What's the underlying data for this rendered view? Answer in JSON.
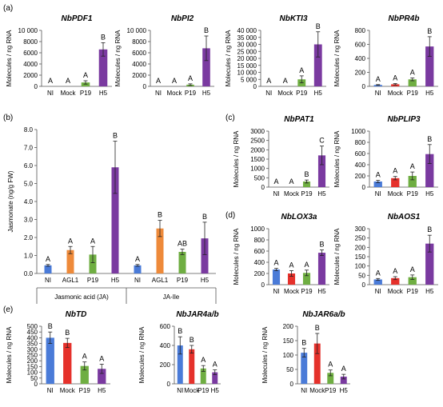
{
  "figure": {
    "panel_labels": [
      "(a)",
      "(b)",
      "(c)",
      "(d)",
      "(e)"
    ]
  },
  "colors": {
    "NI": "#4a7bd8",
    "Mock": "#e5312b",
    "P19": "#6fae42",
    "H5": "#7a3aa0",
    "AGL1": "#ee8a3a"
  },
  "chart_data": [
    {
      "type": "bar",
      "title": "NbPDF1",
      "ylabel": "Molecules / ng RNA",
      "categories": [
        "NI",
        "Mock",
        "P19",
        "H5"
      ],
      "values": [
        0,
        0,
        700,
        6600
      ],
      "errors": [
        0,
        0,
        300,
        1200
      ],
      "letters": [
        "A",
        "A",
        "A",
        "B"
      ],
      "ylim": [
        0,
        10000
      ],
      "yticks": [
        "0",
        "2000",
        "4000",
        "6000",
        "8000",
        "10 000"
      ]
    },
    {
      "type": "bar",
      "title": "NbPI2",
      "ylabel": "Molecules / ng RNA",
      "categories": [
        "NI",
        "Mock",
        "P19",
        "H5"
      ],
      "values": [
        0,
        0,
        300,
        6800
      ],
      "errors": [
        0,
        0,
        150,
        2200
      ],
      "letters": [
        "A",
        "A",
        "A",
        "B"
      ],
      "ylim": [
        0,
        10000
      ],
      "yticks": [
        "0",
        "2000",
        "4000",
        "6000",
        "8000",
        "10 000"
      ]
    },
    {
      "type": "bar",
      "title": "NbKTI3",
      "ylabel": "Molecules / ng RNA",
      "categories": [
        "NI",
        "Mock",
        "P19",
        "H5"
      ],
      "values": [
        0,
        0,
        5000,
        30000
      ],
      "errors": [
        0,
        0,
        2500,
        9000
      ],
      "letters": [
        "A",
        "A",
        "A",
        "B"
      ],
      "ylim": [
        0,
        40000
      ],
      "yticks": [
        "0",
        "5 000",
        "10 000",
        "15 000",
        "20 000",
        "25 000",
        "30 000",
        "35 000",
        "40 000"
      ]
    },
    {
      "type": "bar",
      "title": "NbPR4b",
      "ylabel": "Molecules / ng RNA",
      "categories": [
        "NI",
        "Mock",
        "P19",
        "H5"
      ],
      "values": [
        20,
        30,
        100,
        570
      ],
      "errors": [
        5,
        10,
        20,
        140
      ],
      "letters": [
        "A",
        "A",
        "A",
        "B"
      ],
      "ylim": [
        0,
        800
      ],
      "yticks": [
        "0",
        "200",
        "400",
        "600",
        "800"
      ]
    },
    {
      "type": "bar",
      "title": "",
      "ylabel": "Jasmonate (ng/g FW)",
      "categories": [
        "NI",
        "AGL1",
        "P19",
        "H5",
        "NI",
        "AGL1",
        "P19",
        "H5"
      ],
      "values": [
        0.45,
        1.3,
        1.05,
        5.9,
        0.45,
        2.5,
        1.2,
        1.95
      ],
      "errors": [
        0.05,
        0.2,
        0.45,
        1.45,
        0.05,
        0.45,
        0.15,
        0.9
      ],
      "letters": [
        "A",
        "A",
        "A",
        "B",
        "A",
        "B",
        "AB",
        "B"
      ],
      "groups": [
        "Jasmonic acid (JA)",
        "JA-Ile"
      ],
      "ylim": [
        0,
        8.0
      ],
      "yticks": [
        "0.0",
        "1.0",
        "2.0",
        "3.0",
        "4.0",
        "5.0",
        "6.0",
        "7.0",
        "8.0"
      ]
    },
    {
      "type": "bar",
      "title": "NbPAT1",
      "ylabel": "Molecules / ng RNA",
      "categories": [
        "NI",
        "Mock",
        "P19",
        "H5"
      ],
      "values": [
        0,
        0,
        300,
        1700
      ],
      "errors": [
        0,
        0,
        80,
        500
      ],
      "letters": [
        "A",
        "A",
        "B",
        "C"
      ],
      "ylim": [
        0,
        3000
      ],
      "yticks": [
        "0",
        "500",
        "1000",
        "1500",
        "2000",
        "2500",
        "3000"
      ]
    },
    {
      "type": "bar",
      "title": "NbPLIP3",
      "ylabel": "Molecules / ng RNA",
      "categories": [
        "NI",
        "Mock",
        "P19",
        "H5"
      ],
      "values": [
        100,
        160,
        200,
        590
      ],
      "errors": [
        20,
        30,
        70,
        170
      ],
      "letters": [
        "A",
        "A",
        "A",
        "B"
      ],
      "ylim": [
        0,
        1000
      ],
      "yticks": [
        "0",
        "200",
        "400",
        "600",
        "800",
        "1000"
      ]
    },
    {
      "type": "bar",
      "title": "NbLOX3a",
      "ylabel": "Molecules / ng RNA",
      "categories": [
        "NI",
        "Mock",
        "P19",
        "H5"
      ],
      "values": [
        270,
        200,
        210,
        570
      ],
      "errors": [
        20,
        50,
        50,
        50
      ],
      "letters": [
        "A",
        "A",
        "A",
        "B"
      ],
      "ylim": [
        0,
        1000
      ],
      "yticks": [
        "0",
        "200",
        "400",
        "600",
        "800",
        "1000"
      ]
    },
    {
      "type": "bar",
      "title": "NbAOS1",
      "ylabel": "Molecules / ng RNA",
      "categories": [
        "NI",
        "Mock",
        "P19",
        "H5"
      ],
      "values": [
        28,
        35,
        40,
        220
      ],
      "errors": [
        5,
        8,
        12,
        45
      ],
      "letters": [
        "A",
        "A",
        "A",
        "B"
      ],
      "ylim": [
        0,
        300
      ],
      "yticks": [
        "0",
        "50",
        "100",
        "150",
        "200",
        "250",
        "300"
      ]
    },
    {
      "type": "bar",
      "title": "NbTD",
      "ylabel": "Molecules / ng RNA",
      "categories": [
        "NI",
        "Mock",
        "P19",
        "H5"
      ],
      "values": [
        400,
        355,
        155,
        130
      ],
      "errors": [
        50,
        40,
        35,
        40
      ],
      "letters": [
        "B",
        "B",
        "A",
        "A"
      ],
      "ylim": [
        0,
        500
      ],
      "yticks": [
        "0",
        "50",
        "100",
        "150",
        "200",
        "250",
        "300",
        "350",
        "400",
        "450",
        "500"
      ]
    },
    {
      "type": "bar",
      "title": "NbJAR4a/b",
      "ylabel": "Molecules / ng RNA",
      "categories": [
        "NI",
        "Mock",
        "P19",
        "H5"
      ],
      "values": [
        400,
        360,
        160,
        120
      ],
      "errors": [
        90,
        40,
        30,
        25
      ],
      "letters": [
        "B",
        "B",
        "A",
        "A"
      ],
      "ylim": [
        0,
        600
      ],
      "yticks": [
        "0",
        "200",
        "400",
        "600"
      ]
    },
    {
      "type": "bar",
      "title": "NbJAR6a/b",
      "ylabel": "Molecules / ng RNA",
      "categories": [
        "NI",
        "Mock",
        "P19",
        "H5"
      ],
      "values": [
        108,
        140,
        38,
        25
      ],
      "errors": [
        15,
        35,
        10,
        8
      ],
      "letters": [
        "B",
        "B",
        "A",
        "A"
      ],
      "ylim": [
        0,
        200
      ],
      "yticks": [
        "0",
        "50",
        "100",
        "150",
        "200"
      ]
    }
  ]
}
